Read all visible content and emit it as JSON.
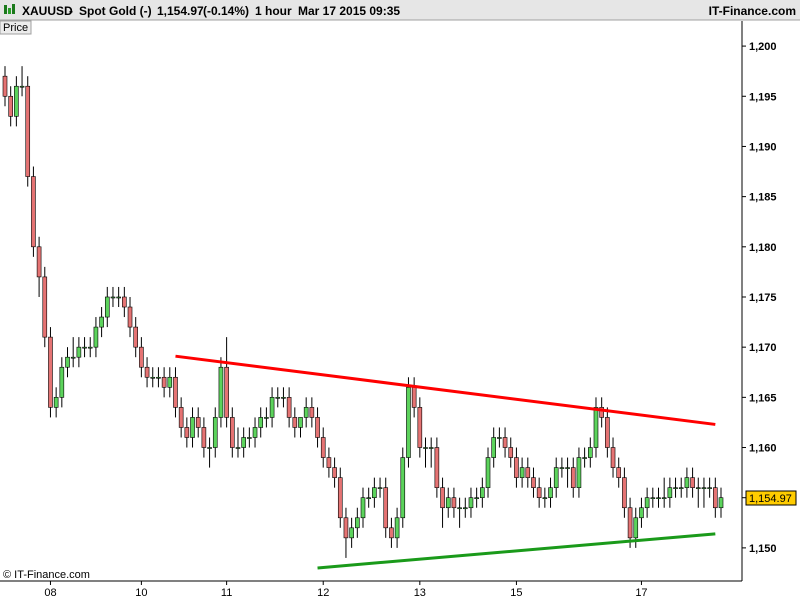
{
  "header": {
    "symbol": "XAUUSD",
    "name": "Spot Gold (-)",
    "price": "1,154.97",
    "change": "(-0.14%)",
    "interval": "1 hour",
    "datetime": "Mar 17 2015 09:35",
    "brand": "IT-Finance.com",
    "separator": "-"
  },
  "panel_label": "Price",
  "watermark": "© IT-Finance.com",
  "last_price_label": "1,154.97",
  "colors": {
    "up": "#5cd35c",
    "down": "#e57373",
    "resistance": "#ff0000",
    "support": "#1a9a1a",
    "header_bg": "#e6e6e6"
  },
  "chart_data": {
    "type": "candlestick",
    "x_ticks": [
      "08",
      "10",
      "11",
      "12",
      "13",
      "15",
      "17"
    ],
    "y_ticks": [
      "1,150",
      "1,155",
      "1,160",
      "1,165",
      "1,170",
      "1,175",
      "1,180",
      "1,185",
      "1,190",
      "1,195",
      "1,200"
    ],
    "y_tick_values": [
      1150,
      1155,
      1160,
      1165,
      1170,
      1175,
      1180,
      1185,
      1190,
      1195,
      1200
    ],
    "ylim": [
      1146.7,
      1202.5
    ],
    "last_price": 1154.97,
    "candles_open": [
      1197,
      1195,
      1193,
      1196,
      1196,
      1187,
      1180,
      1177,
      1171,
      1164,
      1165,
      1168,
      1169,
      1169,
      1170,
      1170,
      1170,
      1172,
      1173,
      1175,
      1175,
      1175,
      1174,
      1172,
      1170,
      1168,
      1167,
      1167,
      1167,
      1166,
      1167,
      1164,
      1162,
      1161,
      1163,
      1162,
      1160,
      1160,
      1163,
      1168,
      1163,
      1160,
      1160,
      1161,
      1161,
      1162,
      1163,
      1163,
      1165,
      1165,
      1165,
      1163,
      1162,
      1163,
      1164,
      1163,
      1161,
      1159,
      1158,
      1157,
      1153,
      1151,
      1152,
      1153,
      1155,
      1155,
      1156,
      1156,
      1152,
      1151,
      1153,
      1159,
      1166,
      1164,
      1160,
      1160,
      1160,
      1156,
      1154,
      1155,
      1154,
      1154,
      1154,
      1155,
      1155,
      1156,
      1159,
      1161,
      1161,
      1160,
      1159,
      1157,
      1158,
      1157,
      1156,
      1155,
      1155,
      1156,
      1158,
      1158,
      1158,
      1156,
      1159,
      1159,
      1160,
      1164,
      1163,
      1160,
      1158,
      1157,
      1154,
      1151,
      1153,
      1154,
      1155,
      1155,
      1155,
      1155,
      1156,
      1156,
      1156,
      1157,
      1156,
      1156,
      1156,
      1156,
      1154
    ],
    "candles_close": [
      1195,
      1193,
      1196,
      1196,
      1187,
      1180,
      1177,
      1171,
      1164,
      1165,
      1168,
      1169,
      1169,
      1170,
      1170,
      1170,
      1172,
      1173,
      1175,
      1175,
      1175,
      1174,
      1172,
      1170,
      1168,
      1167,
      1167,
      1167,
      1166,
      1167,
      1164,
      1162,
      1161,
      1163,
      1162,
      1160,
      1160,
      1163,
      1168,
      1163,
      1160,
      1160,
      1161,
      1161,
      1162,
      1163,
      1163,
      1165,
      1165,
      1165,
      1163,
      1162,
      1163,
      1164,
      1163,
      1161,
      1159,
      1158,
      1157,
      1153,
      1151,
      1152,
      1153,
      1155,
      1155,
      1156,
      1156,
      1152,
      1151,
      1153,
      1159,
      1166,
      1164,
      1160,
      1160,
      1160,
      1156,
      1154,
      1155,
      1154,
      1154,
      1154,
      1155,
      1155,
      1156,
      1159,
      1161,
      1161,
      1160,
      1159,
      1157,
      1158,
      1157,
      1156,
      1155,
      1155,
      1156,
      1158,
      1158,
      1158,
      1156,
      1159,
      1159,
      1160,
      1164,
      1163,
      1160,
      1158,
      1157,
      1154,
      1151,
      1153,
      1154,
      1155,
      1155,
      1155,
      1155,
      1156,
      1156,
      1156,
      1157,
      1156,
      1156,
      1156,
      1156,
      1154,
      1155
    ],
    "candles_high": [
      1198,
      1196,
      1197,
      1198,
      1197,
      1188,
      1181,
      1178,
      1172,
      1166,
      1169,
      1170,
      1171,
      1171,
      1171,
      1171,
      1173,
      1174,
      1176,
      1176,
      1176,
      1176,
      1175,
      1173,
      1171,
      1169,
      1168,
      1168,
      1168,
      1168,
      1168,
      1165,
      1163,
      1164,
      1164,
      1163,
      1161,
      1164,
      1169,
      1171,
      1164,
      1162,
      1162,
      1162,
      1163,
      1164,
      1164,
      1166,
      1166,
      1166,
      1166,
      1164,
      1163,
      1165,
      1165,
      1164,
      1162,
      1160,
      1159,
      1158,
      1154,
      1153,
      1154,
      1156,
      1156,
      1157,
      1157,
      1157,
      1153,
      1154,
      1160,
      1167,
      1167,
      1165,
      1161,
      1161,
      1161,
      1157,
      1156,
      1156,
      1155,
      1155,
      1156,
      1156,
      1157,
      1160,
      1162,
      1162,
      1162,
      1161,
      1160,
      1159,
      1159,
      1158,
      1157,
      1156,
      1157,
      1159,
      1159,
      1159,
      1159,
      1160,
      1160,
      1161,
      1165,
      1165,
      1164,
      1161,
      1159,
      1158,
      1155,
      1154,
      1155,
      1156,
      1156,
      1156,
      1157,
      1157,
      1157,
      1157,
      1158,
      1158,
      1157,
      1157,
      1157,
      1157,
      1156
    ],
    "candles_low": [
      1194,
      1192,
      1192,
      1195,
      1186,
      1179,
      1175,
      1170,
      1163,
      1163,
      1164,
      1167,
      1168,
      1168,
      1169,
      1169,
      1169,
      1171,
      1172,
      1174,
      1174,
      1173,
      1171,
      1169,
      1167,
      1166,
      1166,
      1166,
      1165,
      1165,
      1163,
      1161,
      1160,
      1160,
      1161,
      1159,
      1158,
      1159,
      1162,
      1162,
      1159,
      1159,
      1159,
      1160,
      1160,
      1161,
      1162,
      1162,
      1164,
      1164,
      1162,
      1161,
      1161,
      1162,
      1162,
      1160,
      1158,
      1157,
      1156,
      1152,
      1149,
      1150,
      1151,
      1152,
      1154,
      1154,
      1155,
      1151,
      1150,
      1150,
      1152,
      1158,
      1163,
      1159,
      1158,
      1158,
      1155,
      1152,
      1153,
      1153,
      1152,
      1153,
      1153,
      1154,
      1154,
      1155,
      1158,
      1160,
      1159,
      1158,
      1156,
      1156,
      1156,
      1155,
      1154,
      1154,
      1154,
      1155,
      1157,
      1156,
      1155,
      1155,
      1158,
      1158,
      1159,
      1162,
      1159,
      1157,
      1156,
      1153,
      1150,
      1150,
      1152,
      1153,
      1154,
      1154,
      1154,
      1154,
      1155,
      1155,
      1155,
      1155,
      1154,
      1154,
      1155,
      1153,
      1153
    ]
  }
}
